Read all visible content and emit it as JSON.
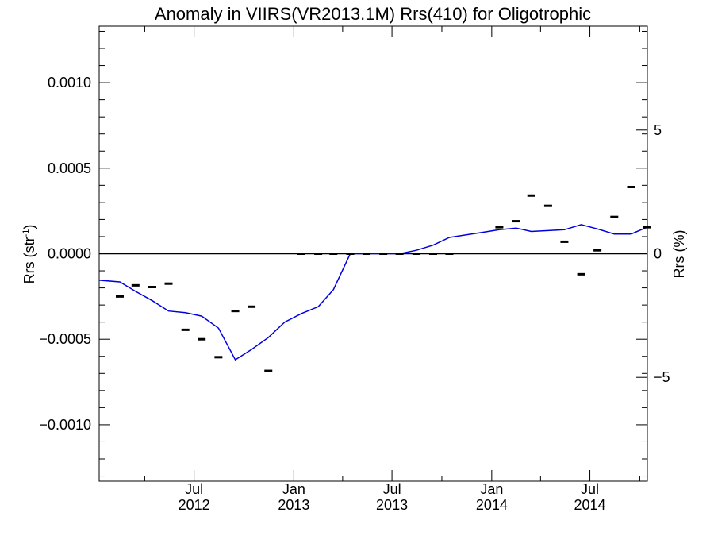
{
  "chart_data": {
    "type": "line",
    "title": "Anomaly in VIIRS(VR2013.1M) Rrs(410) for Oligotrophic",
    "ylabel": "Rrs (str",
    "ylabel_sup": "-1",
    "ylabel_close": ")",
    "y2label": "Rrs (%)",
    "xlim": [
      "2012-01-08",
      "2014-10-15"
    ],
    "ylim": [
      -0.00133,
      0.00133
    ],
    "y2lim": [
      -9.2,
      9.2
    ],
    "yticks": [
      {
        "value": 0.001,
        "label": "0.0010"
      },
      {
        "value": 0.0005,
        "label": "0.0005"
      },
      {
        "value": 0.0,
        "label": "0.0000"
      },
      {
        "value": -0.0005,
        "label": "−0.0005"
      },
      {
        "value": -0.001,
        "label": "−0.0010"
      }
    ],
    "y2ticks": [
      {
        "value": 5,
        "label": "5"
      },
      {
        "value": 0,
        "label": "0"
      },
      {
        "value": -5,
        "label": "−5"
      }
    ],
    "xticks": [
      {
        "date": "2012-07-01",
        "line1": "Jul",
        "line2": "2012"
      },
      {
        "date": "2013-01-01",
        "line1": "Jan",
        "line2": "2013"
      },
      {
        "date": "2013-07-01",
        "line1": "Jul",
        "line2": "2013"
      },
      {
        "date": "2014-01-01",
        "line1": "Jan",
        "line2": "2014"
      },
      {
        "date": "2014-07-01",
        "line1": "Jul",
        "line2": "2014"
      }
    ],
    "series": [
      {
        "kind": "markers",
        "color": "#000000",
        "points": [
          {
            "x": "2012-02-15",
            "y": -0.00025
          },
          {
            "x": "2012-03-15",
            "y": -0.000185
          },
          {
            "x": "2012-04-15",
            "y": -0.000195
          },
          {
            "x": "2012-05-15",
            "y": -0.000175
          },
          {
            "x": "2012-06-15",
            "y": -0.000445
          },
          {
            "x": "2012-07-15",
            "y": -0.0005
          },
          {
            "x": "2012-08-15",
            "y": -0.000605
          },
          {
            "x": "2012-09-15",
            "y": -0.000335
          },
          {
            "x": "2012-10-15",
            "y": -0.00031
          },
          {
            "x": "2012-11-15",
            "y": -0.000685
          },
          {
            "x": "2013-01-15",
            "y": 0.0
          },
          {
            "x": "2013-02-15",
            "y": 0.0
          },
          {
            "x": "2013-03-15",
            "y": 0.0
          },
          {
            "x": "2013-04-15",
            "y": 0.0
          },
          {
            "x": "2013-05-15",
            "y": 0.0
          },
          {
            "x": "2013-06-15",
            "y": 0.0
          },
          {
            "x": "2013-07-15",
            "y": 0.0
          },
          {
            "x": "2013-08-15",
            "y": 0.0
          },
          {
            "x": "2013-09-15",
            "y": 0.0
          },
          {
            "x": "2013-10-15",
            "y": 0.0
          },
          {
            "x": "2014-01-15",
            "y": 0.000155
          },
          {
            "x": "2014-02-15",
            "y": 0.00019
          },
          {
            "x": "2014-03-15",
            "y": 0.00034
          },
          {
            "x": "2014-04-15",
            "y": 0.00028
          },
          {
            "x": "2014-05-15",
            "y": 7e-05
          },
          {
            "x": "2014-06-15",
            "y": -0.00012
          },
          {
            "x": "2014-07-15",
            "y": 2e-05
          },
          {
            "x": "2014-08-15",
            "y": 0.000215
          },
          {
            "x": "2014-09-15",
            "y": 0.00039
          },
          {
            "x": "2014-10-15",
            "y": 0.000155
          }
        ]
      },
      {
        "kind": "line",
        "color": "#0000dd",
        "points": [
          {
            "x": "2012-01-08",
            "y": -0.000155
          },
          {
            "x": "2012-02-15",
            "y": -0.000165
          },
          {
            "x": "2012-03-15",
            "y": -0.00022
          },
          {
            "x": "2012-04-15",
            "y": -0.000275
          },
          {
            "x": "2012-05-15",
            "y": -0.000335
          },
          {
            "x": "2012-06-15",
            "y": -0.000345
          },
          {
            "x": "2012-07-15",
            "y": -0.000365
          },
          {
            "x": "2012-08-15",
            "y": -0.000435
          },
          {
            "x": "2012-09-15",
            "y": -0.00062
          },
          {
            "x": "2012-10-15",
            "y": -0.00056
          },
          {
            "x": "2012-11-15",
            "y": -0.00049
          },
          {
            "x": "2012-12-15",
            "y": -0.0004
          },
          {
            "x": "2013-01-15",
            "y": -0.00035
          },
          {
            "x": "2013-02-15",
            "y": -0.00031
          },
          {
            "x": "2013-03-15",
            "y": -0.00021
          },
          {
            "x": "2013-04-15",
            "y": 0.0
          },
          {
            "x": "2013-05-15",
            "y": 0.0
          },
          {
            "x": "2013-06-15",
            "y": 0.0
          },
          {
            "x": "2013-07-15",
            "y": 0.0
          },
          {
            "x": "2013-08-15",
            "y": 2e-05
          },
          {
            "x": "2013-09-15",
            "y": 5e-05
          },
          {
            "x": "2013-10-15",
            "y": 9.5e-05
          },
          {
            "x": "2013-11-15",
            "y": 0.00011
          },
          {
            "x": "2013-12-15",
            "y": 0.000125
          },
          {
            "x": "2014-01-15",
            "y": 0.00014
          },
          {
            "x": "2014-02-15",
            "y": 0.00015
          },
          {
            "x": "2014-03-15",
            "y": 0.00013
          },
          {
            "x": "2014-04-15",
            "y": 0.000135
          },
          {
            "x": "2014-05-15",
            "y": 0.00014
          },
          {
            "x": "2014-06-15",
            "y": 0.00017
          },
          {
            "x": "2014-07-15",
            "y": 0.000145
          },
          {
            "x": "2014-08-15",
            "y": 0.000115
          },
          {
            "x": "2014-09-15",
            "y": 0.000115
          },
          {
            "x": "2014-10-15",
            "y": 0.000155
          }
        ]
      }
    ],
    "grid": false,
    "legend": "none"
  }
}
